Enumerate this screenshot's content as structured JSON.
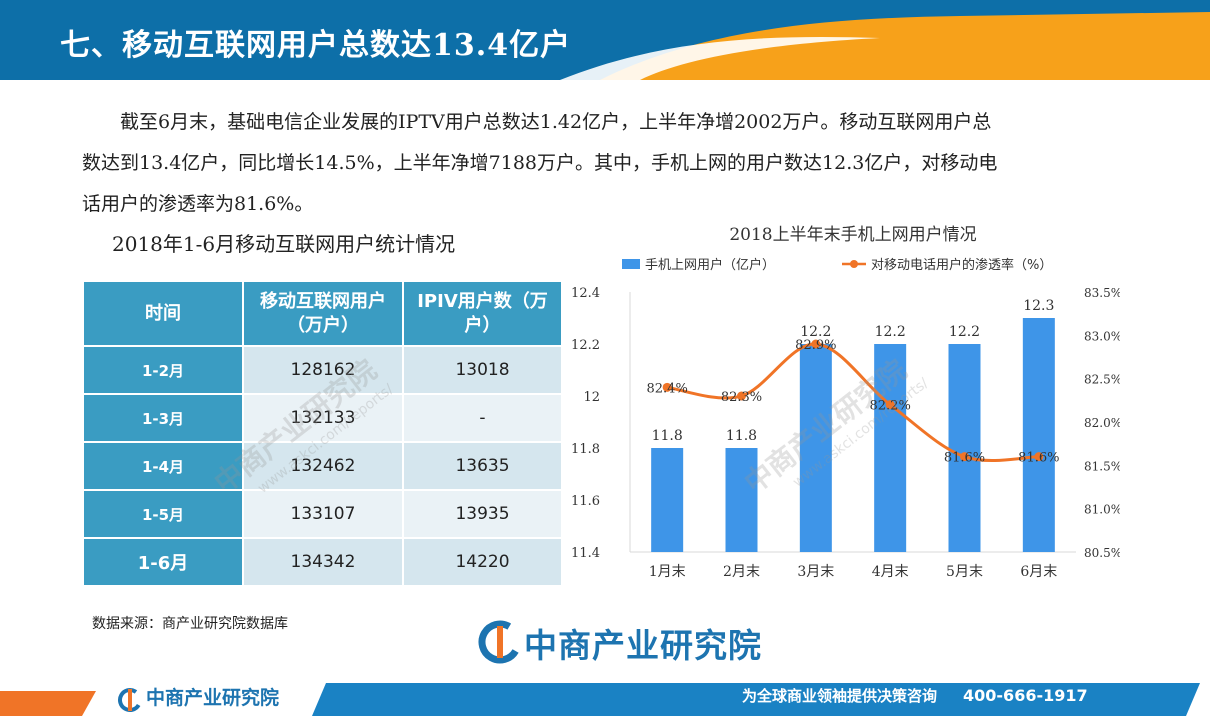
{
  "header": {
    "title": "七、移动互联网用户总数达13.4亿户"
  },
  "paragraph": {
    "line1": "截至6月末，基础电信企业发展的IPTV用户总数达1.42亿户，上半年净增2002万户。移动互联网用户总",
    "line2": "数达到13.4亿户，同比增长14.5%，上半年净增7188万户。其中，手机上网的用户数达12.3亿户，对移动电",
    "line3": "话用户的渗透率为81.6%。"
  },
  "table": {
    "title": "2018年1-6月移动互联网用户统计情况",
    "headers": [
      "时间",
      "移动互联网用户（万户）",
      "IPIV用户数（万户）"
    ],
    "rows": [
      [
        "1-2月",
        "128162",
        "13018"
      ],
      [
        "1-3月",
        "132133",
        "-"
      ],
      [
        "1-4月",
        "132462",
        "13635"
      ],
      [
        "1-5月",
        "133107",
        "13935"
      ],
      [
        "1-6月",
        "134342",
        "14220"
      ]
    ]
  },
  "source": "数据来源：商产业研究院数据库",
  "chart_data": {
    "type": "bar",
    "title": "2018上半年末手机上网用户情况",
    "categories": [
      "1月末",
      "2月末",
      "3月末",
      "4月末",
      "5月末",
      "6月末"
    ],
    "series": [
      {
        "name": "手机上网用户（亿户）",
        "type": "bar",
        "axis": "left",
        "values": [
          11.8,
          11.8,
          12.2,
          12.2,
          12.2,
          12.3
        ],
        "labels": [
          "11.8",
          "11.8",
          "12.2",
          "12.2",
          "12.2",
          "12.3"
        ],
        "color": "#3e95e8"
      },
      {
        "name": "对移动电话用户的渗透率（%）",
        "type": "line",
        "axis": "right",
        "values": [
          82.4,
          82.3,
          82.9,
          82.2,
          81.6,
          81.6
        ],
        "labels": [
          "82.4%",
          "82.3%",
          "82.9%",
          "82.2%",
          "81.6%",
          "81.6%"
        ],
        "color": "#f07427"
      }
    ],
    "ylim_left": [
      11.4,
      12.4
    ],
    "yticks_left": [
      "11.4",
      "11.6",
      "11.8",
      "12",
      "12.2",
      "12.4"
    ],
    "ylim_right": [
      80.5,
      83.5
    ],
    "yticks_right": [
      "80.5%",
      "81.0%",
      "81.5%",
      "82.0%",
      "82.5%",
      "83.0%",
      "83.5%"
    ],
    "legend_position": "top",
    "grid": false
  },
  "logo": {
    "text": "中商产业研究院"
  },
  "watermark": {
    "text": "中商产业研究院",
    "url": "www.askci.com/reports/"
  },
  "footer": {
    "logo_text": "中商产业研究院",
    "slogan": "为全球商业领袖提供决策咨询",
    "phone": "400-666-1917"
  },
  "colors": {
    "brand_blue": "#0d6fa8",
    "accent_orange": "#f7a11a",
    "table_header": "#3a9cc2"
  }
}
